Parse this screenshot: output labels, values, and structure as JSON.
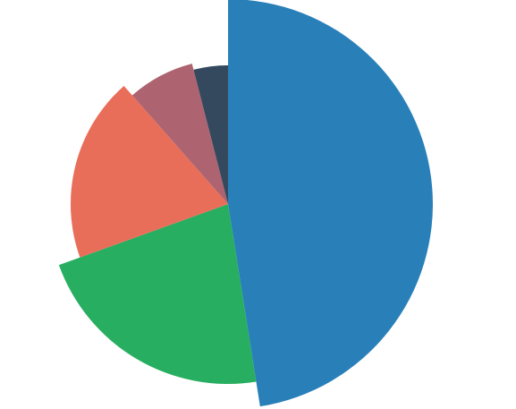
{
  "chart_data": {
    "type": "pie",
    "variant": "polar-area",
    "start_angle_deg": 0,
    "direction": "clockwise",
    "slices": [
      {
        "value": 47.5,
        "radius": 229,
        "color": "#2980b9"
      },
      {
        "value": 22.0,
        "radius": 201,
        "color": "#27ae60"
      },
      {
        "value": 19.0,
        "radius": 176,
        "color": "#e96e59"
      },
      {
        "value": 7.5,
        "radius": 162,
        "color": "#ad6470"
      },
      {
        "value": 4.0,
        "radius": 155,
        "color": "#34495e"
      }
    ]
  }
}
